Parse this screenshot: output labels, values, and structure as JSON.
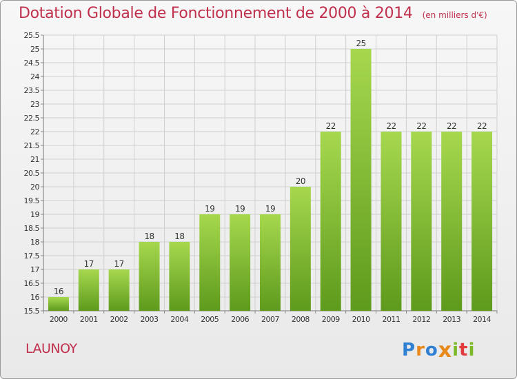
{
  "header": {
    "title": "Dotation Globale de Fonctionnement de 2000 à 2014",
    "unit": "(en milliers d'€)"
  },
  "footer": {
    "commune": "LAUNOY",
    "logo_text": "Proxiti"
  },
  "colors": {
    "title": "#c0304d",
    "bar_top": "#a6d84e",
    "bar_bottom": "#5e9a1c",
    "grid": "#cfcfcf"
  },
  "chart_data": {
    "type": "bar",
    "categories": [
      "2000",
      "2001",
      "2002",
      "2003",
      "2004",
      "2005",
      "2006",
      "2007",
      "2008",
      "2009",
      "2010",
      "2011",
      "2012",
      "2013",
      "2014"
    ],
    "values": [
      16,
      17,
      17,
      18,
      18,
      19,
      19,
      19,
      20,
      22,
      25,
      22,
      22,
      22,
      22
    ],
    "data_labels": [
      "16",
      "17",
      "17",
      "18",
      "18",
      "19",
      "19",
      "19",
      "20",
      "22",
      "25",
      "22",
      "22",
      "22",
      "22"
    ],
    "title": "Dotation Globale de Fonctionnement de 2000 à 2014",
    "ylim": [
      15.5,
      25.5
    ],
    "yticks": [
      15.5,
      16,
      16.5,
      17,
      17.5,
      18,
      18.5,
      19,
      19.5,
      20,
      20.5,
      21,
      21.5,
      22,
      22.5,
      23,
      23.5,
      24,
      24.5,
      25,
      25.5
    ],
    "ytick_labels": [
      "15.5",
      "16",
      "16.5",
      "17",
      "17.5",
      "18",
      "18.5",
      "19",
      "19.5",
      "20",
      "20.5",
      "21",
      "21.5",
      "22",
      "22.5",
      "23",
      "23.5",
      "24",
      "24.5",
      "25",
      "25.5"
    ],
    "grid": true
  }
}
